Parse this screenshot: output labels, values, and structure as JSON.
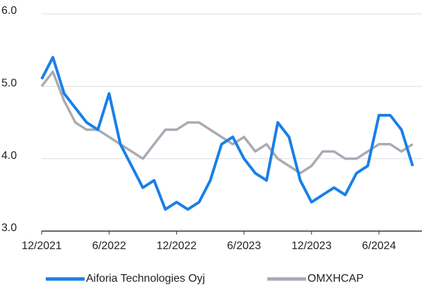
{
  "chart_data": {
    "type": "line",
    "x": [
      "12/2021",
      "1/2022",
      "2/2022",
      "3/2022",
      "4/2022",
      "5/2022",
      "6/2022",
      "7/2022",
      "8/2022",
      "9/2022",
      "10/2022",
      "11/2022",
      "12/2022",
      "1/2023",
      "2/2023",
      "3/2023",
      "4/2023",
      "5/2023",
      "6/2023",
      "7/2023",
      "8/2023",
      "9/2023",
      "10/2023",
      "11/2023",
      "12/2023",
      "1/2024",
      "2/2024",
      "3/2024",
      "4/2024",
      "5/2024",
      "6/2024",
      "7/2024",
      "8/2024",
      "9/2024"
    ],
    "series": [
      {
        "name": "Aiforia Technologies Oyj",
        "color": "#1a7fe8",
        "values": [
          5.1,
          5.4,
          4.9,
          4.7,
          4.5,
          4.4,
          4.9,
          4.2,
          3.9,
          3.6,
          3.7,
          3.3,
          3.4,
          3.3,
          3.4,
          3.7,
          4.2,
          4.3,
          4.0,
          3.8,
          3.7,
          4.5,
          4.3,
          3.7,
          3.4,
          3.5,
          3.6,
          3.5,
          3.8,
          3.9,
          4.6,
          4.6,
          4.4,
          3.9
        ]
      },
      {
        "name": "OMXHCAP",
        "color": "#a9aab3",
        "values": [
          5.0,
          5.2,
          4.8,
          4.5,
          4.4,
          4.4,
          4.3,
          4.2,
          4.1,
          4.0,
          4.2,
          4.4,
          4.4,
          4.5,
          4.5,
          4.4,
          4.3,
          4.2,
          4.3,
          4.1,
          4.2,
          4.0,
          3.9,
          3.8,
          3.9,
          4.1,
          4.1,
          4.0,
          4.0,
          4.1,
          4.2,
          4.2,
          4.1,
          4.2
        ]
      }
    ],
    "xticks": [
      "12/2021",
      "6/2022",
      "12/2022",
      "6/2023",
      "12/2023",
      "6/2024"
    ],
    "ylim": [
      3,
      6
    ],
    "yticks": [
      {
        "value": 3,
        "label": "3.0"
      },
      {
        "value": 4,
        "label": "4.0"
      },
      {
        "value": 5,
        "label": "5.0"
      },
      {
        "value": 6,
        "label": "6.0"
      }
    ],
    "grid": true,
    "legend": "bottom"
  }
}
